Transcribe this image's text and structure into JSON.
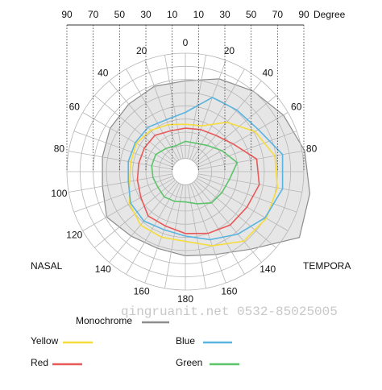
{
  "chart_data": {
    "type": "polar",
    "theta": [
      0,
      20,
      40,
      60,
      80,
      100,
      120,
      140,
      160,
      180,
      200,
      220,
      240,
      260,
      280,
      300,
      320,
      340
    ],
    "thetaticks": [
      0,
      20,
      40,
      60,
      80,
      140,
      160,
      180,
      {
        "value": 200,
        "label": "160"
      },
      {
        "value": 220,
        "label": "140"
      },
      {
        "value": 240,
        "label": "120"
      },
      {
        "value": 260,
        "label": "100"
      },
      {
        "value": 280,
        "label": "80"
      },
      {
        "value": 300,
        "label": "60"
      },
      {
        "value": 320,
        "label": "40"
      },
      {
        "value": 340,
        "label": "20"
      }
    ],
    "rlim": [
      0,
      90
    ],
    "rticks": [
      10,
      20,
      30,
      40,
      50,
      60,
      70,
      80,
      90
    ],
    "top_axis": {
      "label": "Degree",
      "ticks": [
        {
          "value": -90,
          "label": "90"
        },
        {
          "value": -70,
          "label": "70"
        },
        {
          "value": -50,
          "label": "50"
        },
        {
          "value": -30,
          "label": "30"
        },
        {
          "value": -10,
          "label": "10"
        },
        10,
        30,
        50,
        70,
        90
      ]
    },
    "side_labels": {
      "left": "NASAL",
      "right": "TEMPORA"
    },
    "watermark": "qingruanit.net 0532-85025005",
    "series": [
      {
        "name": "Monochrome",
        "color": "#8c8c8c",
        "fill": "#d6d6d6",
        "values": [
          69,
          75,
          80,
          86,
          92,
          96,
          100,
          77,
          67,
          64,
          62,
          64,
          69,
          64,
          64,
          66,
          67,
          69
        ]
      },
      {
        "name": "Yellow",
        "color": "#f5dc3c",
        "values": [
          36,
          37,
          49,
          61,
          69,
          71,
          71,
          69,
          60,
          53,
          53,
          53,
          49,
          43,
          42,
          43,
          41,
          38
        ]
      },
      {
        "name": "Blue",
        "color": "#5ab4e0",
        "values": [
          45,
          60,
          61,
          64,
          75,
          75,
          70,
          62,
          55,
          49,
          47,
          49,
          48,
          44,
          44,
          44,
          44,
          42
        ]
      },
      {
        "name": "Red",
        "color": "#e85a5a",
        "values": [
          33,
          34,
          36,
          42,
          55,
          57,
          54,
          53,
          50,
          47,
          44,
          44,
          39,
          37,
          36,
          36,
          36,
          33
        ]
      },
      {
        "name": "Green",
        "color": "#5cc46a",
        "values": [
          23,
          23,
          26,
          32,
          40,
          34,
          32,
          31,
          26,
          23,
          24,
          25,
          24,
          25,
          26,
          26,
          23,
          21
        ]
      }
    ]
  }
}
